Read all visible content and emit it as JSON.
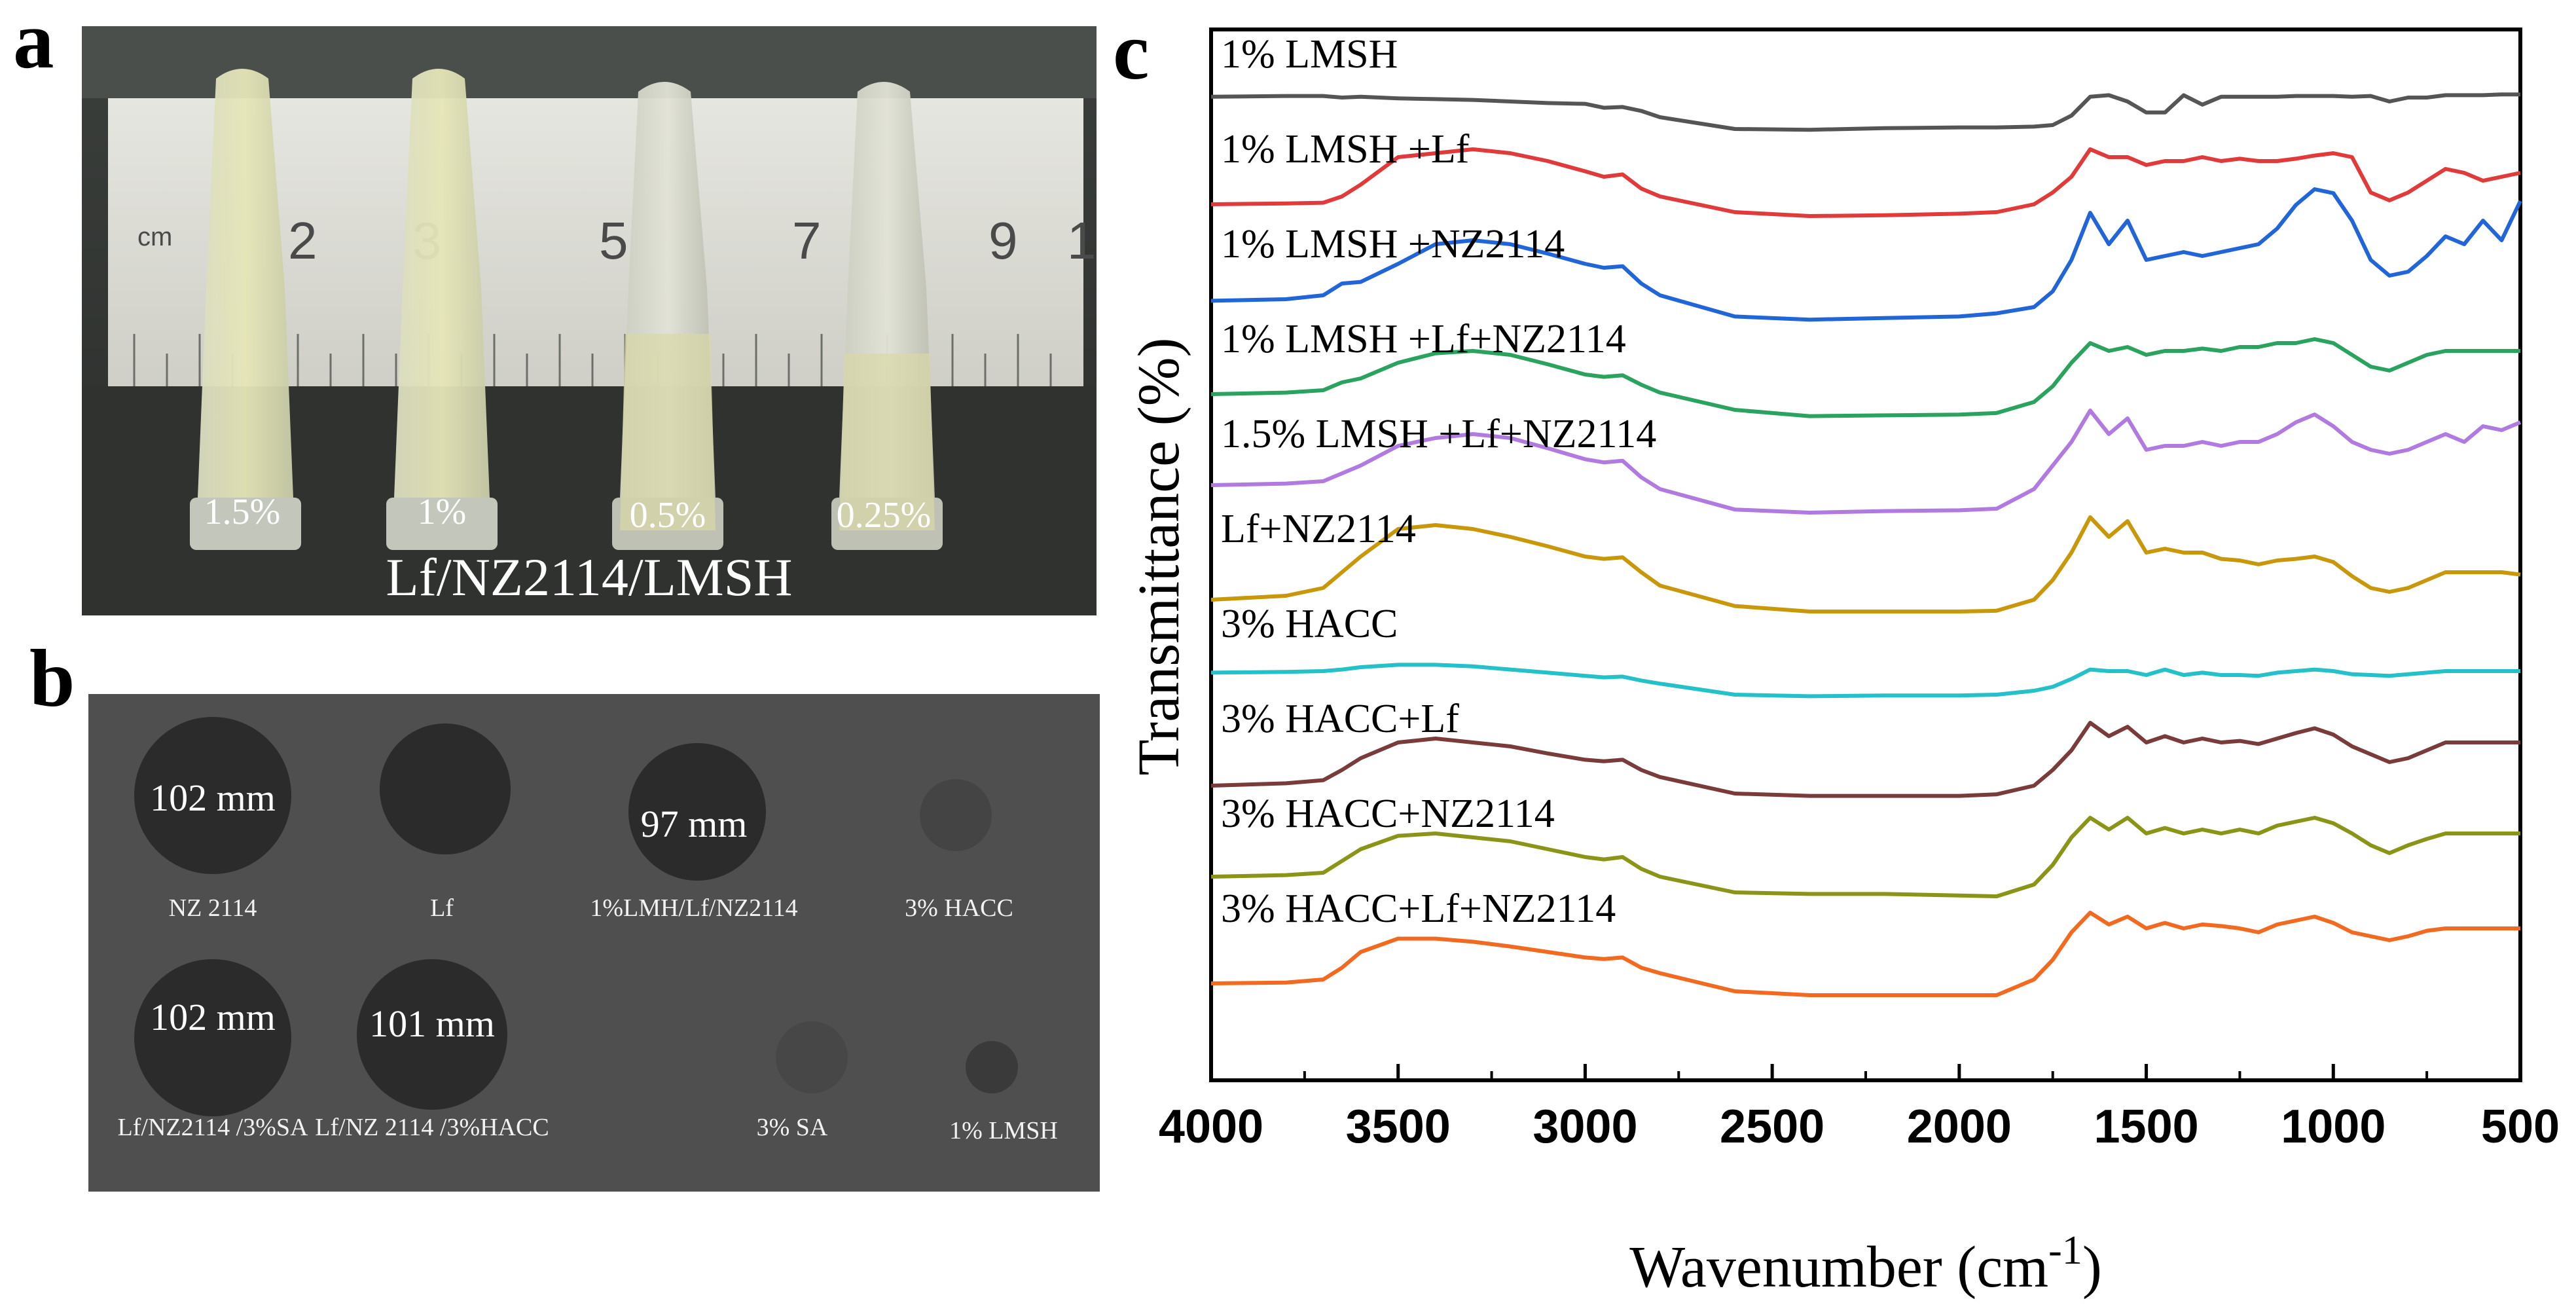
{
  "panels": {
    "a": "a",
    "b": "b",
    "c": "c"
  },
  "panel_a": {
    "tube_labels": [
      "1.5%",
      "1%",
      "0.5%",
      "0.25%"
    ],
    "ruler_unit": "cm",
    "ruler_numbers": [
      "2",
      "3",
      "5",
      "7",
      "9",
      "1"
    ],
    "caption": "Lf/NZ2114/LMSH"
  },
  "panel_b": {
    "zones": [
      {
        "label": "NZ 2114",
        "size": "102 mm"
      },
      {
        "label": "Lf",
        "size": ""
      },
      {
        "label": "1%LMH/Lf/NZ2114",
        "size": "97 mm"
      },
      {
        "label": "3% HACC",
        "size": ""
      },
      {
        "label": "Lf/NZ2114 /3%SA",
        "size": "102 mm"
      },
      {
        "label": "Lf/NZ 2114 /3%HACC",
        "size": "101 mm"
      },
      {
        "label": "3% SA",
        "size": ""
      },
      {
        "label": "1% LMSH",
        "size": ""
      }
    ]
  },
  "chart_data": {
    "type": "line",
    "title": "",
    "xlabel": "Wavenumber (cm",
    "xlabel_sup": "-1",
    "xlabel_end": ")",
    "ylabel": "Transmittance (%)",
    "xlim": [
      4000,
      500
    ],
    "xticks": [
      "4000",
      "3500",
      "3000",
      "2500",
      "2000",
      "1500",
      "1000",
      "500"
    ],
    "x_tick_values": [
      4000,
      3500,
      3000,
      2500,
      2000,
      1500,
      1000,
      500
    ],
    "y_units": "arbitrary offset (stacked spectra)",
    "x": [
      4000,
      3800,
      3700,
      3650,
      3600,
      3500,
      3400,
      3300,
      3200,
      3100,
      3000,
      2950,
      2900,
      2850,
      2800,
      2600,
      2400,
      2200,
      2000,
      1900,
      1800,
      1750,
      1700,
      1650,
      1600,
      1550,
      1500,
      1450,
      1400,
      1350,
      1300,
      1250,
      1200,
      1150,
      1100,
      1050,
      1000,
      950,
      900,
      850,
      800,
      750,
      700,
      650,
      600,
      550,
      500
    ],
    "series": [
      {
        "name": "1% LMSH",
        "color": "#555555",
        "offset": 0,
        "values": [
          0.56,
          0.57,
          0.57,
          0.55,
          0.56,
          0.54,
          0.53,
          0.52,
          0.5,
          0.48,
          0.47,
          0.42,
          0.43,
          0.38,
          0.3,
          0.15,
          0.14,
          0.16,
          0.17,
          0.17,
          0.18,
          0.2,
          0.32,
          0.56,
          0.58,
          0.5,
          0.36,
          0.36,
          0.58,
          0.46,
          0.56,
          0.56,
          0.56,
          0.56,
          0.57,
          0.57,
          0.57,
          0.56,
          0.57,
          0.5,
          0.55,
          0.55,
          0.58,
          0.58,
          0.58,
          0.59,
          0.59
        ]
      },
      {
        "name": "1% LMSH +Lf",
        "color": "#e03a3a",
        "offset": 1,
        "values": [
          0.4,
          0.41,
          0.42,
          0.5,
          0.65,
          1.0,
          1.05,
          1.1,
          1.05,
          0.95,
          0.82,
          0.75,
          0.78,
          0.6,
          0.5,
          0.3,
          0.25,
          0.26,
          0.28,
          0.3,
          0.4,
          0.55,
          0.75,
          1.1,
          1.0,
          1.0,
          0.9,
          0.95,
          0.95,
          1.0,
          0.95,
          0.98,
          0.95,
          0.95,
          0.98,
          1.02,
          1.05,
          1.0,
          0.55,
          0.45,
          0.55,
          0.7,
          0.85,
          0.8,
          0.7,
          0.75,
          0.8
        ]
      },
      {
        "name": "1% LMSH +NZ2114",
        "color": "#2166d9",
        "offset": 2,
        "values": [
          0.38,
          0.4,
          0.45,
          0.6,
          0.62,
          0.85,
          1.1,
          1.15,
          1.1,
          0.98,
          0.85,
          0.8,
          0.82,
          0.6,
          0.45,
          0.18,
          0.14,
          0.16,
          0.18,
          0.22,
          0.3,
          0.5,
          0.9,
          1.5,
          1.1,
          1.4,
          0.9,
          0.95,
          1.0,
          0.95,
          1.0,
          1.05,
          1.1,
          1.3,
          1.6,
          1.8,
          1.75,
          1.4,
          0.9,
          0.7,
          0.75,
          0.95,
          1.2,
          1.1,
          1.4,
          1.15,
          1.65
        ]
      },
      {
        "name": "1% LMSH +Lf+NZ2114",
        "color": "#2aa35e",
        "offset": 3,
        "values": [
          0.4,
          0.42,
          0.45,
          0.55,
          0.6,
          0.8,
          0.92,
          0.95,
          0.9,
          0.78,
          0.65,
          0.62,
          0.64,
          0.52,
          0.42,
          0.2,
          0.12,
          0.13,
          0.14,
          0.16,
          0.3,
          0.5,
          0.8,
          1.05,
          0.95,
          1.0,
          0.9,
          0.95,
          0.95,
          0.98,
          0.95,
          1.0,
          1.0,
          1.05,
          1.05,
          1.1,
          1.05,
          0.9,
          0.75,
          0.7,
          0.8,
          0.9,
          0.95,
          0.95,
          0.95,
          0.95,
          0.95
        ]
      },
      {
        "name": "1.5% LMSH +Lf+NZ2114",
        "color": "#b07ae0",
        "offset": 4,
        "values": [
          0.45,
          0.47,
          0.5,
          0.6,
          0.7,
          0.95,
          1.05,
          1.1,
          1.05,
          0.92,
          0.78,
          0.74,
          0.76,
          0.55,
          0.4,
          0.14,
          0.1,
          0.12,
          0.13,
          0.15,
          0.4,
          0.7,
          1.0,
          1.4,
          1.1,
          1.3,
          0.9,
          0.95,
          0.95,
          1.0,
          0.95,
          1.0,
          1.0,
          1.1,
          1.25,
          1.35,
          1.2,
          1.0,
          0.9,
          0.85,
          0.9,
          1.0,
          1.1,
          1.0,
          1.2,
          1.15,
          1.25
        ]
      },
      {
        "name": "Lf+NZ2114",
        "color": "#c9970a",
        "offset": 5,
        "values": [
          0.2,
          0.25,
          0.35,
          0.55,
          0.75,
          1.1,
          1.15,
          1.1,
          1.0,
          0.88,
          0.75,
          0.72,
          0.74,
          0.55,
          0.38,
          0.12,
          0.05,
          0.05,
          0.05,
          0.06,
          0.2,
          0.45,
          0.8,
          1.25,
          1.0,
          1.2,
          0.8,
          0.85,
          0.8,
          0.8,
          0.72,
          0.7,
          0.65,
          0.7,
          0.72,
          0.75,
          0.68,
          0.5,
          0.35,
          0.3,
          0.35,
          0.45,
          0.55,
          0.55,
          0.55,
          0.55,
          0.52
        ]
      },
      {
        "name": "3% HACC",
        "color": "#24c1c8",
        "offset": 6,
        "values": [
          0.48,
          0.49,
          0.5,
          0.52,
          0.55,
          0.58,
          0.58,
          0.56,
          0.52,
          0.48,
          0.44,
          0.42,
          0.43,
          0.38,
          0.34,
          0.2,
          0.18,
          0.19,
          0.19,
          0.2,
          0.25,
          0.3,
          0.4,
          0.52,
          0.5,
          0.5,
          0.45,
          0.52,
          0.45,
          0.48,
          0.45,
          0.45,
          0.44,
          0.48,
          0.5,
          0.52,
          0.5,
          0.46,
          0.45,
          0.44,
          0.46,
          0.48,
          0.5,
          0.5,
          0.5,
          0.5,
          0.5
        ]
      },
      {
        "name": "3% HACC+Lf",
        "color": "#7a3b3b",
        "offset": 7,
        "values": [
          0.25,
          0.28,
          0.32,
          0.45,
          0.6,
          0.8,
          0.85,
          0.8,
          0.75,
          0.66,
          0.58,
          0.56,
          0.58,
          0.45,
          0.36,
          0.15,
          0.12,
          0.12,
          0.12,
          0.14,
          0.25,
          0.45,
          0.7,
          1.05,
          0.88,
          1.0,
          0.8,
          0.88,
          0.8,
          0.85,
          0.8,
          0.82,
          0.78,
          0.85,
          0.92,
          0.98,
          0.9,
          0.75,
          0.65,
          0.55,
          0.6,
          0.7,
          0.8,
          0.8,
          0.8,
          0.8,
          0.8
        ]
      },
      {
        "name": "3% HACC+NZ2114",
        "color": "#8a9518",
        "offset": 8,
        "values": [
          0.3,
          0.32,
          0.35,
          0.5,
          0.65,
          0.82,
          0.85,
          0.8,
          0.75,
          0.65,
          0.55,
          0.52,
          0.55,
          0.4,
          0.3,
          0.1,
          0.08,
          0.08,
          0.06,
          0.05,
          0.2,
          0.45,
          0.8,
          1.05,
          0.9,
          1.05,
          0.85,
          0.92,
          0.85,
          0.9,
          0.85,
          0.9,
          0.85,
          0.95,
          1.0,
          1.05,
          0.98,
          0.85,
          0.7,
          0.6,
          0.7,
          0.78,
          0.85,
          0.85,
          0.85,
          0.85,
          0.85
        ]
      },
      {
        "name": "3% HACC+Lf+NZ2114",
        "color": "#f26a1f",
        "offset": 9,
        "values": [
          0.15,
          0.16,
          0.2,
          0.35,
          0.55,
          0.72,
          0.72,
          0.68,
          0.62,
          0.55,
          0.48,
          0.46,
          0.48,
          0.35,
          0.28,
          0.05,
          0.0,
          0.0,
          0.0,
          0.0,
          0.2,
          0.45,
          0.8,
          1.05,
          0.9,
          1.0,
          0.85,
          0.92,
          0.85,
          0.9,
          0.88,
          0.85,
          0.8,
          0.9,
          0.95,
          1.0,
          0.92,
          0.8,
          0.75,
          0.7,
          0.75,
          0.82,
          0.85,
          0.85,
          0.85,
          0.85,
          0.85
        ]
      }
    ]
  }
}
